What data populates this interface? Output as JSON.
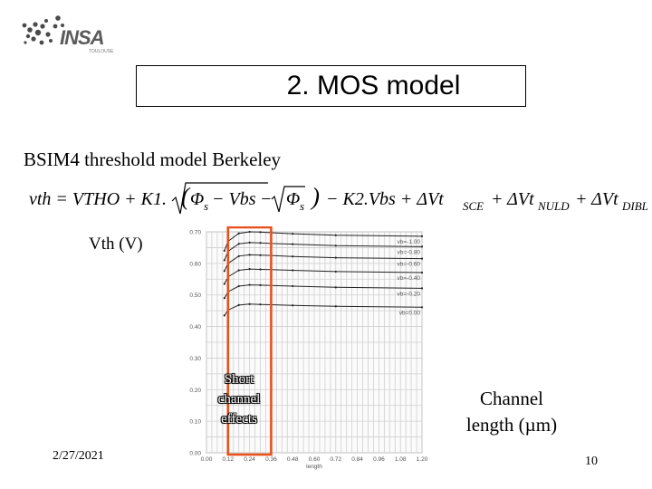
{
  "logo": {
    "brand": "INSA",
    "sub": "TOULOUSE"
  },
  "slide": {
    "title": "2. MOS model",
    "subtitle": "BSIM4 threshold model Berkeley",
    "formula": "vth = VTHO + K1.(√(Φs − Vbs) − √Φs) − K2.Vbs + ΔVt_SCE + ΔVt_NULD + ΔVt_DIBL",
    "y_axis_label": "Vth (V)",
    "annotation": [
      "Short",
      "channel",
      "effects"
    ],
    "x_axis_label": [
      "Channel",
      "length (µm)"
    ],
    "date": "2/27/2021",
    "page_number": "10"
  },
  "chart_data": {
    "type": "line",
    "xlabel": "length",
    "ylabel": "",
    "xlim": [
      0,
      1.2
    ],
    "ylim": [
      0,
      0.7
    ],
    "x_ticks": [
      "0.00",
      "0.12",
      "0.24",
      "0.36",
      "0.48",
      "0.60",
      "0.72",
      "0.84",
      "0.96",
      "1.08",
      "1.20"
    ],
    "y_ticks": [
      "0.00",
      "0.10",
      "0.20",
      "0.30",
      "0.40",
      "0.50",
      "0.60",
      "0.70"
    ],
    "grid": true,
    "series": [
      {
        "name": "vb=-1.00",
        "x": [
          0.1,
          0.12,
          0.18,
          0.24,
          0.3,
          0.36,
          0.48,
          0.72,
          1.2
        ],
        "y": [
          0.64,
          0.67,
          0.695,
          0.7,
          0.699,
          0.697,
          0.694,
          0.689,
          0.686
        ]
      },
      {
        "name": "vb=-0.80",
        "x": [
          0.1,
          0.12,
          0.18,
          0.24,
          0.3,
          0.36,
          0.48,
          0.72,
          1.2
        ],
        "y": [
          0.61,
          0.638,
          0.662,
          0.666,
          0.665,
          0.663,
          0.661,
          0.656,
          0.653
        ]
      },
      {
        "name": "vb=-0.60",
        "x": [
          0.1,
          0.12,
          0.18,
          0.24,
          0.3,
          0.36,
          0.48,
          0.72,
          1.2
        ],
        "y": [
          0.576,
          0.6,
          0.623,
          0.627,
          0.626,
          0.625,
          0.622,
          0.618,
          0.615
        ]
      },
      {
        "name": "vb=-0.40",
        "x": [
          0.1,
          0.12,
          0.18,
          0.24,
          0.3,
          0.36,
          0.48,
          0.72,
          1.2
        ],
        "y": [
          0.535,
          0.557,
          0.578,
          0.582,
          0.581,
          0.58,
          0.578,
          0.574,
          0.571
        ]
      },
      {
        "name": "vb=-0.20",
        "x": [
          0.1,
          0.12,
          0.18,
          0.24,
          0.3,
          0.36,
          0.48,
          0.72,
          1.2
        ],
        "y": [
          0.49,
          0.51,
          0.528,
          0.532,
          0.531,
          0.53,
          0.528,
          0.524,
          0.521
        ]
      },
      {
        "name": "vb=0.00",
        "x": [
          0.1,
          0.12,
          0.18,
          0.24,
          0.3,
          0.36,
          0.48,
          0.72,
          1.2
        ],
        "y": [
          0.435,
          0.452,
          0.468,
          0.471,
          0.47,
          0.469,
          0.467,
          0.464,
          0.461
        ]
      }
    ],
    "highlight": {
      "x_range": [
        0.12,
        0.36
      ],
      "color": "#e8501d"
    },
    "line_color": "#222222",
    "grid_color": "#cfcfcf"
  }
}
